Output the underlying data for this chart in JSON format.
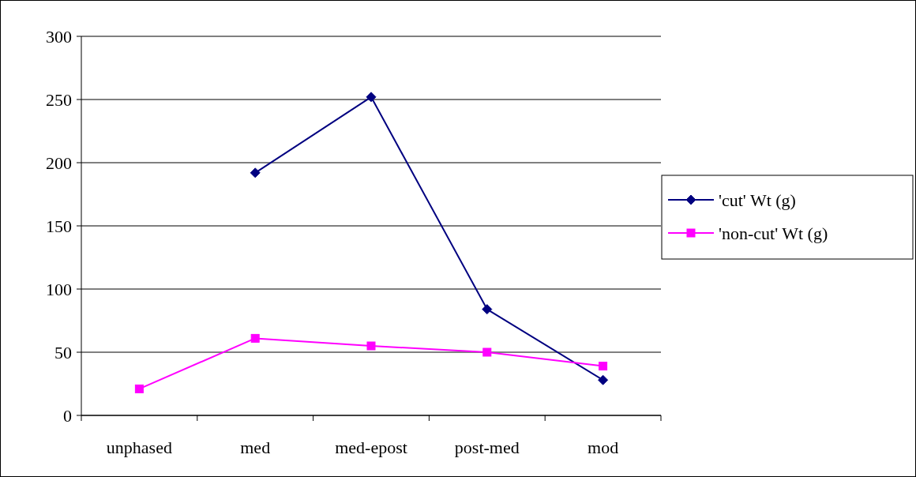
{
  "chart_data": {
    "type": "line",
    "categories": [
      "unphased",
      "med",
      "med-epost",
      "post-med",
      "mod"
    ],
    "series": [
      {
        "name": "'cut' Wt (g)",
        "color": "#000080",
        "marker": "diamond",
        "values": [
          null,
          192,
          252,
          84,
          28
        ]
      },
      {
        "name": "'non-cut' Wt (g)",
        "color": "#ff00ff",
        "marker": "square",
        "values": [
          21,
          61,
          55,
          50,
          39
        ]
      }
    ],
    "ylim": [
      0,
      300
    ],
    "yticks": [
      0,
      50,
      100,
      150,
      200,
      250,
      300
    ],
    "grid": "y",
    "legend": "right",
    "line_style": "solid"
  }
}
